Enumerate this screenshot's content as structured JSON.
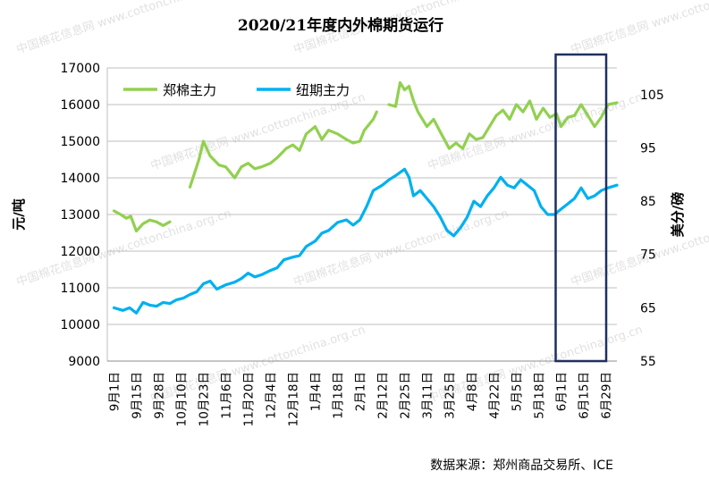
{
  "colors": {
    "zhengmian": "#92D050",
    "niuqi": "#00B0F0",
    "grid": "#BFBFBF",
    "axis_text": "#000000",
    "highlight_box": "#1F2F5F"
  },
  "watermark": {
    "site": "www.cottonchina.org.cn",
    "brand": "中国棉花信息网"
  },
  "chart_data": {
    "type": "line",
    "title": "2020/21年度内外棉期货运行",
    "source": "数据来源：郑州商品交易所、ICE",
    "ylabel_left": "元/吨",
    "ylabel_right": "美分/磅",
    "ylim_left": [
      9000,
      17000
    ],
    "yticks_left": [
      "17000",
      "16000",
      "15000",
      "14000",
      "13000",
      "12000",
      "11000",
      "10000",
      "9000"
    ],
    "ylim_right": [
      55,
      110
    ],
    "yticks_right": [
      "105",
      "95",
      "85",
      "75",
      "65",
      "55"
    ],
    "x_tick_labels": [
      "9月1日",
      "9月15日",
      "9月28日",
      "10月10日",
      "10月23日",
      "11月6日",
      "11月20日",
      "12月4日",
      "12月18日",
      "1月4日",
      "1月18日",
      "2月1日",
      "2月12日",
      "2月25日",
      "3月11日",
      "3月25日",
      "4月8日",
      "4月22日",
      "5月5日",
      "5月18日",
      "6月1日",
      "6月15日",
      "6月29日"
    ],
    "highlight_region": [
      "6月1日",
      "6月29日"
    ],
    "grid": "horizontal",
    "legend_position": "top-left",
    "series": [
      {
        "name": "郑棉主力",
        "axis": "left",
        "points": [
          [
            0,
            13100
          ],
          [
            0.3,
            13000
          ],
          [
            0.55,
            12900
          ],
          [
            0.75,
            12950
          ],
          [
            1.0,
            12550
          ],
          [
            1.3,
            12750
          ],
          [
            1.6,
            12850
          ],
          [
            1.9,
            12800
          ],
          [
            2.2,
            12700
          ],
          [
            2.5,
            12800
          ],
          [
            3.4,
            13750
          ],
          [
            3.8,
            14500
          ],
          [
            4.0,
            15000
          ],
          [
            4.3,
            14600
          ],
          [
            4.7,
            14350
          ],
          [
            5.0,
            14300
          ],
          [
            5.4,
            14000
          ],
          [
            5.7,
            14300
          ],
          [
            6.0,
            14400
          ],
          [
            6.3,
            14250
          ],
          [
            6.6,
            14300
          ],
          [
            7.0,
            14400
          ],
          [
            7.3,
            14550
          ],
          [
            7.7,
            14800
          ],
          [
            8.0,
            14900
          ],
          [
            8.3,
            14750
          ],
          [
            8.6,
            15200
          ],
          [
            9.0,
            15400
          ],
          [
            9.3,
            15050
          ],
          [
            9.6,
            15300
          ],
          [
            10.0,
            15200
          ],
          [
            10.4,
            15050
          ],
          [
            10.7,
            14950
          ],
          [
            11.0,
            15000
          ],
          [
            11.2,
            15300
          ],
          [
            11.6,
            15600
          ],
          [
            11.75,
            15800
          ],
          [
            12.3,
            16000
          ],
          [
            12.6,
            15950
          ],
          [
            12.8,
            16600
          ],
          [
            13.0,
            16400
          ],
          [
            13.2,
            16500
          ],
          [
            13.4,
            16100
          ],
          [
            13.6,
            15800
          ],
          [
            14.0,
            15400
          ],
          [
            14.3,
            15600
          ],
          [
            14.6,
            15250
          ],
          [
            15.0,
            14800
          ],
          [
            15.3,
            14950
          ],
          [
            15.6,
            14800
          ],
          [
            15.9,
            15200
          ],
          [
            16.2,
            15050
          ],
          [
            16.5,
            15100
          ],
          [
            16.8,
            15400
          ],
          [
            17.1,
            15700
          ],
          [
            17.4,
            15850
          ],
          [
            17.7,
            15600
          ],
          [
            18.0,
            16000
          ],
          [
            18.3,
            15800
          ],
          [
            18.6,
            16100
          ],
          [
            18.9,
            15600
          ],
          [
            19.2,
            15900
          ],
          [
            19.5,
            15650
          ],
          [
            19.8,
            15750
          ],
          [
            20.0,
            15400
          ],
          [
            20.3,
            15650
          ],
          [
            20.6,
            15700
          ],
          [
            20.9,
            16000
          ],
          [
            21.2,
            15700
          ],
          [
            21.5,
            15400
          ],
          [
            21.8,
            15650
          ],
          [
            22.1,
            16000
          ],
          [
            22.5,
            16050
          ]
        ]
      },
      {
        "name": "纽期主力",
        "axis": "right",
        "points": [
          [
            0,
            65
          ],
          [
            0.4,
            64.5
          ],
          [
            0.7,
            65
          ],
          [
            1.0,
            64
          ],
          [
            1.3,
            66
          ],
          [
            1.6,
            65.5
          ],
          [
            1.9,
            65.3
          ],
          [
            2.2,
            66
          ],
          [
            2.5,
            65.8
          ],
          [
            2.8,
            66.5
          ],
          [
            3.1,
            66.8
          ],
          [
            3.4,
            67.5
          ],
          [
            3.7,
            68
          ],
          [
            4.0,
            69.5
          ],
          [
            4.3,
            70
          ],
          [
            4.6,
            68.5
          ],
          [
            5.0,
            69.3
          ],
          [
            5.4,
            69.8
          ],
          [
            5.7,
            70.5
          ],
          [
            6.0,
            71.5
          ],
          [
            6.3,
            70.8
          ],
          [
            6.6,
            71.2
          ],
          [
            7.0,
            72
          ],
          [
            7.3,
            72.5
          ],
          [
            7.6,
            74
          ],
          [
            8.0,
            74.5
          ],
          [
            8.3,
            74.8
          ],
          [
            8.6,
            76.5
          ],
          [
            9.0,
            77.5
          ],
          [
            9.3,
            79
          ],
          [
            9.6,
            79.5
          ],
          [
            10.0,
            81
          ],
          [
            10.4,
            81.5
          ],
          [
            10.7,
            80.5
          ],
          [
            11.0,
            81.5
          ],
          [
            11.3,
            84
          ],
          [
            11.6,
            87
          ],
          [
            12.0,
            88
          ],
          [
            12.3,
            89
          ],
          [
            12.6,
            89.8
          ],
          [
            13.0,
            91
          ],
          [
            13.2,
            89.5
          ],
          [
            13.4,
            86
          ],
          [
            13.7,
            87
          ],
          [
            14.0,
            85.5
          ],
          [
            14.3,
            84
          ],
          [
            14.6,
            82
          ],
          [
            14.9,
            79.5
          ],
          [
            15.2,
            78.5
          ],
          [
            15.5,
            80
          ],
          [
            15.8,
            82
          ],
          [
            16.1,
            85
          ],
          [
            16.4,
            84
          ],
          [
            16.7,
            86
          ],
          [
            17.0,
            87.5
          ],
          [
            17.3,
            89.5
          ],
          [
            17.6,
            88
          ],
          [
            17.9,
            87.5
          ],
          [
            18.2,
            89
          ],
          [
            18.5,
            88
          ],
          [
            18.8,
            87
          ],
          [
            19.1,
            84
          ],
          [
            19.4,
            82.5
          ],
          [
            19.7,
            82.5
          ],
          [
            20.0,
            83.5
          ],
          [
            20.3,
            84.5
          ],
          [
            20.6,
            85.5
          ],
          [
            20.9,
            87.5
          ],
          [
            21.2,
            85.5
          ],
          [
            21.5,
            86
          ],
          [
            21.8,
            87
          ],
          [
            22.1,
            87.5
          ],
          [
            22.5,
            88
          ]
        ]
      }
    ]
  }
}
